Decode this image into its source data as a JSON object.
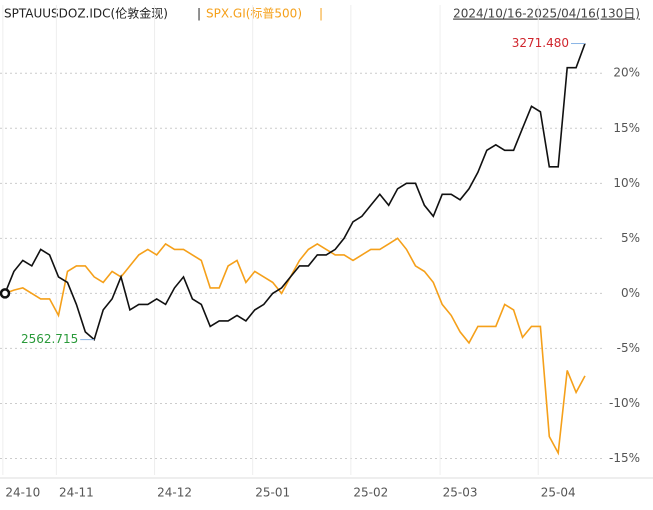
{
  "chart_data": {
    "type": "line",
    "title": "SPTAUUSDOZ.IDC(伦敦金现)",
    "subtitle": "SPX.GI(标普500)",
    "separator": "|",
    "date_range": "2024/10/16-2025/04/16(130日)",
    "categories": [
      null,
      null,
      "24-10",
      null,
      null,
      null,
      null,
      null,
      "24-11",
      null,
      null,
      null,
      null,
      null,
      null,
      null,
      null,
      null,
      null,
      "24-12",
      null,
      null,
      null,
      null,
      null,
      null,
      null,
      null,
      null,
      null,
      "25-01",
      null,
      null,
      null,
      null,
      null,
      null,
      null,
      null,
      null,
      null,
      "25-02",
      null,
      null,
      null,
      null,
      null,
      null,
      null,
      null,
      null,
      "25-03",
      null,
      null,
      null,
      null,
      null,
      null,
      null,
      null,
      null,
      null,
      "25-04",
      null,
      null,
      null
    ],
    "series": [
      {
        "name": "SPTAUUSDOZ.IDC(伦敦金现)",
        "color": "#111111",
        "values": [
          0,
          2,
          3,
          2.5,
          4,
          3.5,
          1.5,
          1,
          -1,
          -3.5,
          -4.2,
          -1.5,
          -0.5,
          1.5,
          -1.5,
          -1,
          -1,
          -0.5,
          -1,
          0.5,
          1.5,
          -0.5,
          -1,
          -3,
          -2.5,
          -2.5,
          -2,
          -2.5,
          -1.5,
          -1,
          0,
          0.5,
          1.5,
          2.5,
          2.5,
          3.5,
          3.5,
          4,
          5,
          6.5,
          7,
          8,
          9,
          8,
          9.5,
          10,
          10,
          8,
          7,
          9,
          9,
          8.5,
          9.5,
          11,
          13,
          13.5,
          13,
          13,
          15,
          17,
          16.5,
          11.5,
          11.5,
          20.5,
          20.5,
          22.7
        ]
      },
      {
        "name": "SPX.GI(标普500)",
        "color": "#f5a01a",
        "values": [
          0,
          0.3,
          0.5,
          0,
          -0.5,
          -0.5,
          -2,
          2,
          2.5,
          2.5,
          1.5,
          1,
          2,
          1.5,
          2.5,
          3.5,
          4,
          3.5,
          4.5,
          4,
          4,
          3.5,
          3,
          0.5,
          0.5,
          2.5,
          3,
          1,
          2,
          1.5,
          1,
          0,
          1.5,
          3,
          4,
          4.5,
          4,
          3.5,
          3.5,
          3,
          3.5,
          4,
          4,
          4.5,
          5,
          4,
          2.5,
          2,
          1,
          -1,
          -2,
          -3.5,
          -4.5,
          -3,
          -3,
          -3,
          -1,
          -1.5,
          -4,
          -3,
          -3,
          -13,
          -14.5,
          -7,
          -9,
          -7.5
        ]
      }
    ],
    "annotations": [
      {
        "text": "3271.480",
        "series": 0,
        "index": 65,
        "color": "#d0262e"
      },
      {
        "text": "2562.715",
        "series": 0,
        "index": 10,
        "color": "#2a9a3a"
      }
    ],
    "ylim": [
      -16.5,
      26.2
    ],
    "yticks": [
      {
        "value": 20,
        "label": "20%"
      },
      {
        "value": 15,
        "label": "15%"
      },
      {
        "value": 10,
        "label": "10%"
      },
      {
        "value": 5,
        "label": "5%"
      },
      {
        "value": 0,
        "label": "0%"
      },
      {
        "value": -5,
        "label": "-5%"
      },
      {
        "value": -10,
        "label": "-10%"
      },
      {
        "value": -15,
        "label": "-15%"
      }
    ],
    "grid": true
  }
}
